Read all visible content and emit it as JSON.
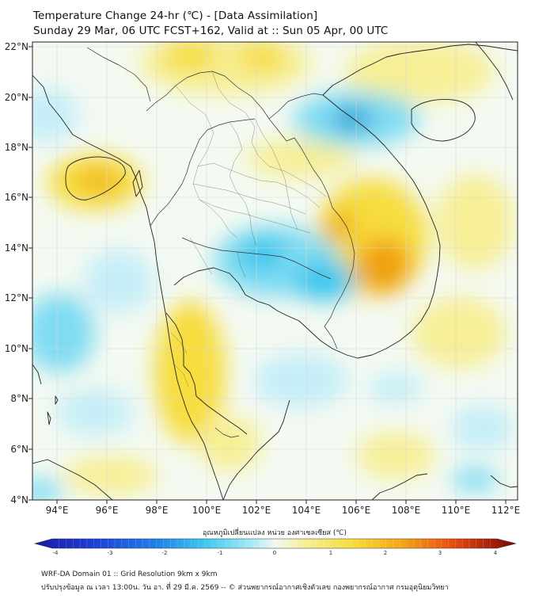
{
  "header": {
    "title": "Temperature Change 24-hr (℃) - [Data Assimilation]",
    "subtitle": "Sunday 29 Mar, 06 UTC FCST+162, Valid at :: Sun 05 Apr, 00 UTC"
  },
  "map": {
    "lat_labels": [
      "22°N",
      "20°N",
      "18°N",
      "16°N",
      "14°N",
      "12°N",
      "10°N",
      "8°N",
      "6°N",
      "4°N"
    ],
    "lon_labels": [
      "94°E",
      "96°E",
      "98°E",
      "100°E",
      "102°E",
      "104°E",
      "106°E",
      "108°E",
      "110°E",
      "112°E"
    ],
    "lat_range": [
      4,
      22.3
    ],
    "lon_range": [
      93.0,
      112.5
    ],
    "colors": {
      "background": "#f4faf2",
      "warm_light": "#f6ef96",
      "warm_mid": "#f7dd3c",
      "warm_strong": "#f2b820",
      "warm_orange": "#f0a010",
      "cool_light": "#c6eef8",
      "cool_mid": "#7fdcf2",
      "cool_strong": "#3cc6ee",
      "cool_deep": "#2a9fd8",
      "coast": "#222222",
      "border": "#333333",
      "grid": "#d8d8d8"
    }
  },
  "colorbar": {
    "title": "อุณหภูมิเปลี่ยนแปลง หน่วย องศาเซลเซียส (℃)",
    "tick_labels": [
      "-4",
      "-3",
      "-2",
      "-1",
      "0",
      "1",
      "2",
      "3",
      "4"
    ],
    "min": -4,
    "max": 4
  },
  "footer": {
    "line1": "WRF-DA Domain 01 :: Grid Resolution 9km x 9km",
    "line2": "ปรับปรุงข้อมูล ณ เวลา 13:00น. วัน อา. ที่ 29 มี.ค. 2569 -- © ส่วนพยากรณ์อากาศเชิงตัวเลข กองพยากรณ์อากาศ กรมอุตุนิยมวิทยา"
  }
}
